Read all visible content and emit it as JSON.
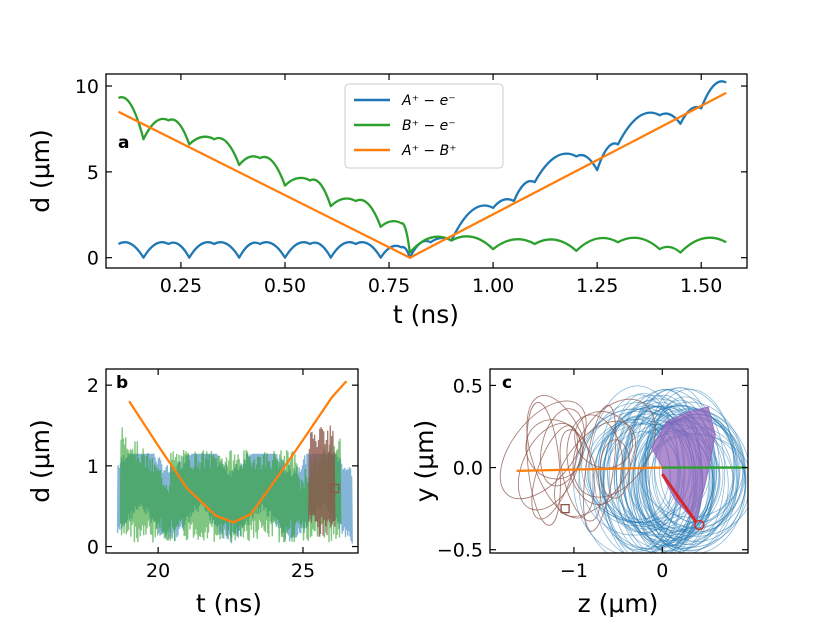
{
  "colors": {
    "blue": "#1f77b4",
    "green": "#2ca02c",
    "orange": "#ff7f0e",
    "brown": "#8c564b",
    "purple": "#9467bd",
    "red": "#d62728"
  },
  "chart_data": [
    {
      "id": "a",
      "type": "line",
      "panel_label": "a",
      "xlabel": "t (ns)",
      "ylabel": "d (μm)",
      "xlim": [
        0.07,
        1.61
      ],
      "ylim": [
        -0.6,
        10.7
      ],
      "xticks": [
        "0.25",
        "0.50",
        "0.75",
        "1.00",
        "1.25",
        "1.50"
      ],
      "yticks": [
        "0",
        "5",
        "10"
      ],
      "legend_position": "top-center",
      "series": [
        {
          "name": "A⁺ − e⁻",
          "color": "blue",
          "x": [
            0.1,
            0.16,
            0.22,
            0.27,
            0.33,
            0.39,
            0.44,
            0.5,
            0.56,
            0.61,
            0.67,
            0.73,
            0.78,
            0.8,
            0.85,
            0.9,
            1.0,
            1.05,
            1.1,
            1.2,
            1.25,
            1.3,
            1.4,
            1.45,
            1.5,
            1.56
          ],
          "y": [
            0.8,
            0.0,
            0.8,
            0.0,
            0.8,
            0.0,
            0.8,
            0.0,
            0.8,
            0.0,
            0.8,
            0.0,
            0.6,
            0.0,
            0.9,
            1.0,
            2.9,
            3.3,
            4.4,
            5.9,
            5.1,
            6.6,
            8.3,
            7.8,
            8.7,
            10.2
          ]
        },
        {
          "name": "B⁺ − e⁻",
          "color": "green",
          "x": [
            0.1,
            0.16,
            0.22,
            0.27,
            0.33,
            0.39,
            0.44,
            0.5,
            0.56,
            0.61,
            0.67,
            0.73,
            0.78,
            0.8,
            0.9,
            1.0,
            1.1,
            1.2,
            1.3,
            1.4,
            1.45,
            1.56
          ],
          "y": [
            9.3,
            6.9,
            8.0,
            6.6,
            6.9,
            5.4,
            5.8,
            4.2,
            4.5,
            3.0,
            3.3,
            1.8,
            2.0,
            0.3,
            1.0,
            0.5,
            0.8,
            0.4,
            0.9,
            0.5,
            0.3,
            0.9
          ]
        },
        {
          "name": "A⁺ − B⁺",
          "color": "orange",
          "x": [
            0.1,
            0.8,
            1.56
          ],
          "y": [
            8.5,
            0.0,
            9.6
          ]
        }
      ]
    },
    {
      "id": "b",
      "type": "line",
      "panel_label": "b",
      "xlabel": "t (ns)",
      "ylabel": "d (μm)",
      "xlim": [
        18.2,
        26.9
      ],
      "ylim": [
        -0.08,
        2.2
      ],
      "xticks": [
        "20",
        "25"
      ],
      "yticks": [
        "0",
        "1",
        "2"
      ],
      "series": [
        {
          "name": "",
          "color": "orange",
          "x": [
            19.0,
            20.0,
            21.0,
            22.0,
            22.6,
            23.2,
            24.0,
            25.0,
            26.0,
            26.5
          ],
          "y": [
            1.8,
            1.25,
            0.72,
            0.38,
            0.3,
            0.4,
            0.8,
            1.32,
            1.85,
            2.05
          ]
        }
      ]
    },
    {
      "id": "c",
      "type": "line",
      "panel_label": "c",
      "xlabel": "z (μm)",
      "ylabel": "y (μm)",
      "xlim": [
        -1.95,
        0.97
      ],
      "ylim": [
        -0.52,
        0.6
      ],
      "xticks": [
        "−1",
        "0"
      ],
      "yticks": [
        "0.5",
        "0.0",
        "−0.5"
      ],
      "series": [
        {
          "name": "",
          "color": "orange",
          "x": [
            -1.65,
            0.0
          ],
          "y": [
            -0.02,
            0.0
          ]
        },
        {
          "name": "",
          "color": "green",
          "x": [
            0.0,
            0.95
          ],
          "y": [
            0.0,
            0.0
          ]
        },
        {
          "name": "",
          "color": "red",
          "x": [
            0.0,
            0.38
          ],
          "y": [
            -0.04,
            -0.33
          ]
        }
      ]
    }
  ]
}
